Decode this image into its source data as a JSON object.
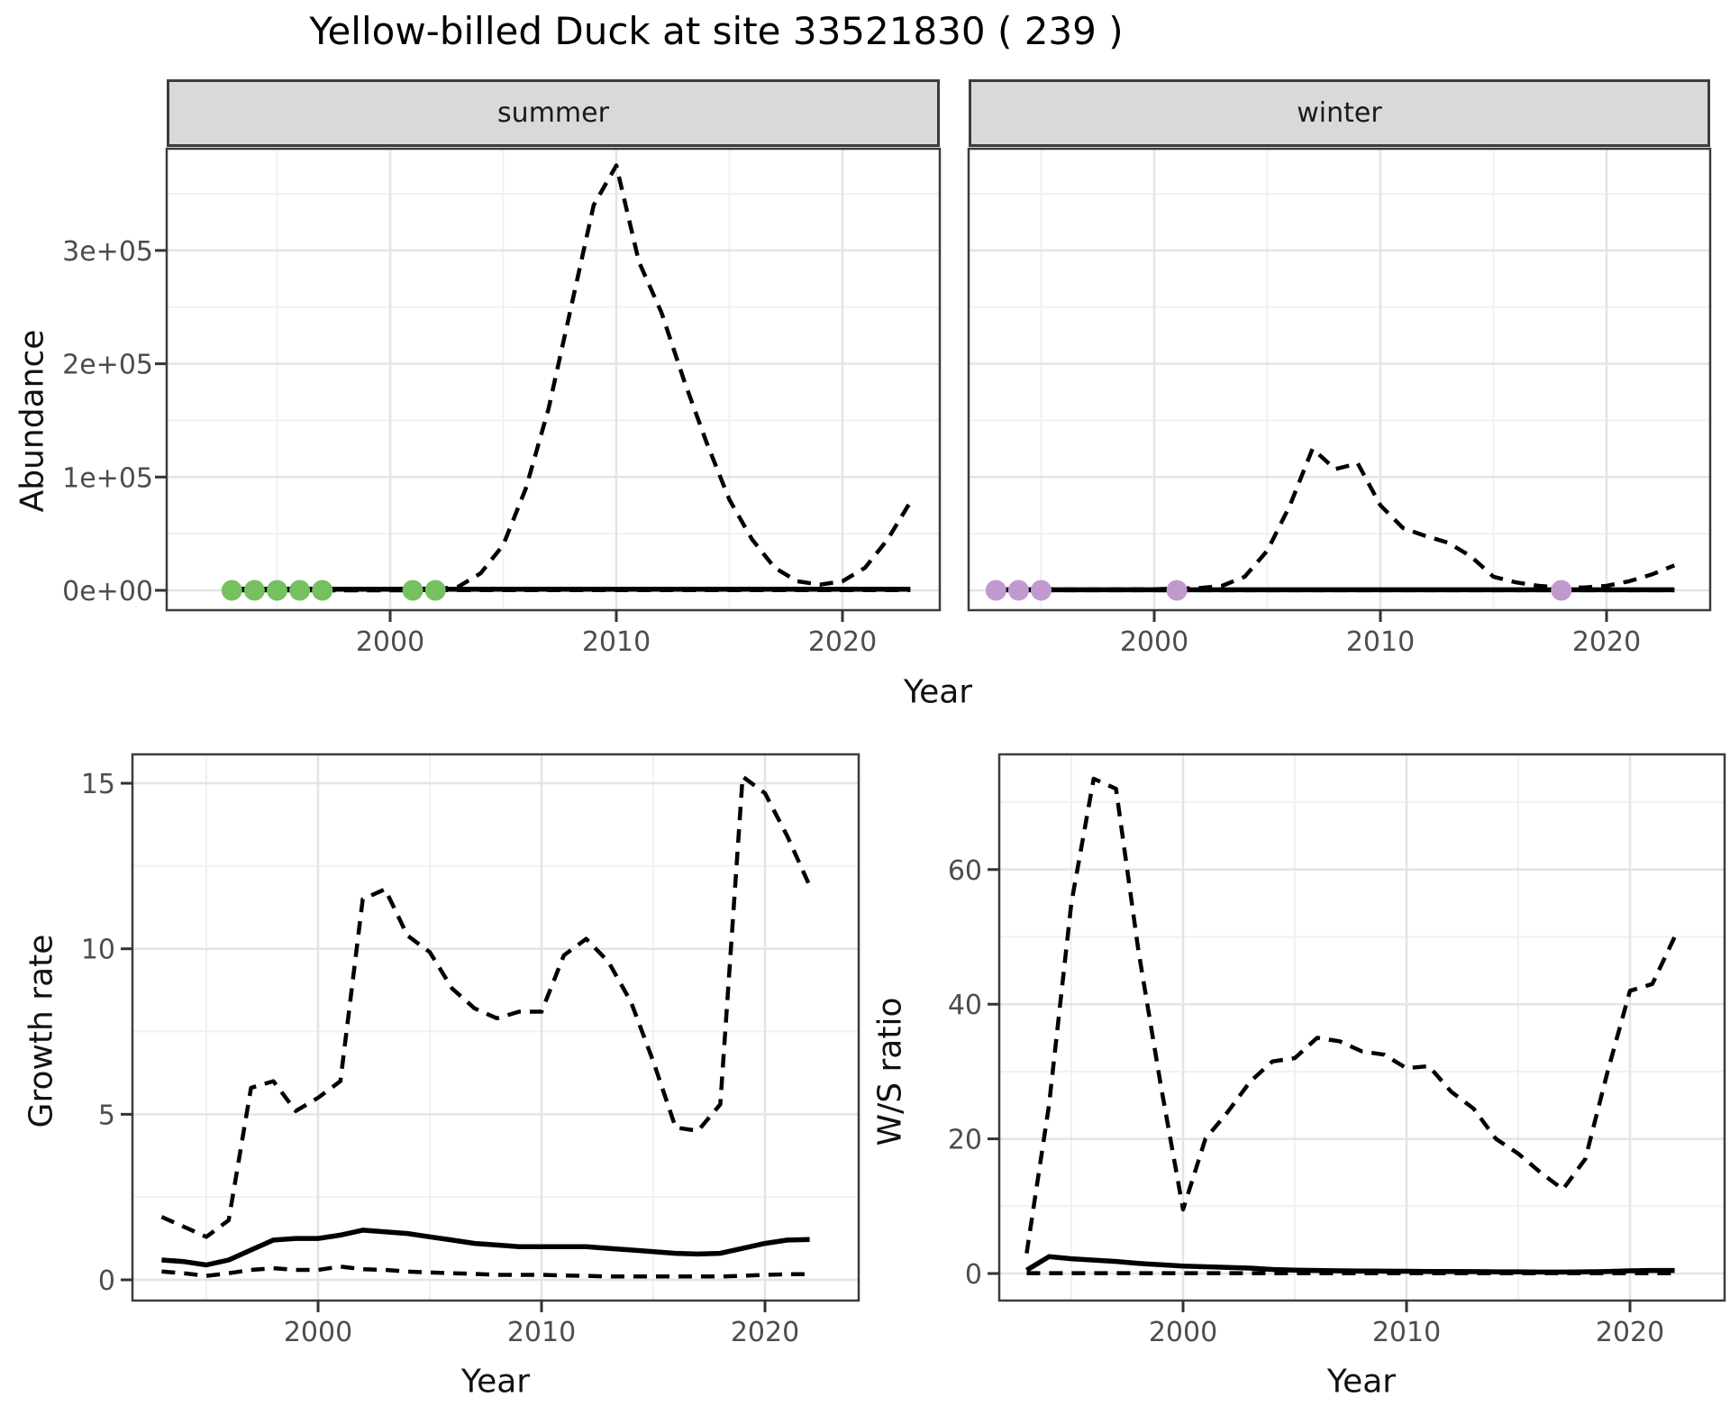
{
  "title": "Yellow-billed Duck at site 33521830 ( 239 )",
  "facets": [
    {
      "label": "summer"
    },
    {
      "label": "winter"
    }
  ],
  "axes": {
    "top": {
      "x_label": "Year",
      "y_label": "Abundance",
      "x_ticks": [
        {
          "label": "2000",
          "v": 2000
        },
        {
          "label": "2010",
          "v": 2010
        },
        {
          "label": "2020",
          "v": 2020
        }
      ],
      "y_ticks": [
        {
          "label": "0e+00",
          "v": 0
        },
        {
          "label": "1e+05",
          "v": 100000
        },
        {
          "label": "2e+05",
          "v": 200000
        },
        {
          "label": "3e+05",
          "v": 300000
        }
      ]
    },
    "growth": {
      "x_label": "Year",
      "y_label": "Growth rate",
      "x_ticks": [
        {
          "label": "2000",
          "v": 2000
        },
        {
          "label": "2010",
          "v": 2010
        },
        {
          "label": "2020",
          "v": 2020
        }
      ],
      "y_ticks": [
        {
          "label": "0",
          "v": 0
        },
        {
          "label": "5",
          "v": 5
        },
        {
          "label": "10",
          "v": 10
        },
        {
          "label": "15",
          "v": 15
        }
      ]
    },
    "ws": {
      "x_label": "Year",
      "y_label": "W/S ratio",
      "x_ticks": [
        {
          "label": "2000",
          "v": 2000
        },
        {
          "label": "2010",
          "v": 2010
        },
        {
          "label": "2020",
          "v": 2020
        }
      ],
      "y_ticks": [
        {
          "label": "0",
          "v": 0
        },
        {
          "label": "20",
          "v": 20
        },
        {
          "label": "40",
          "v": 40
        },
        {
          "label": "60",
          "v": 60
        }
      ]
    }
  },
  "colors": {
    "line": "#000000",
    "summer_points": "#75c05f",
    "winter_points": "#c09ace",
    "grid_major": "#e4e4e4",
    "grid_minor": "#f1f1f1",
    "panel_border": "#3c3c3c",
    "tick_mark": "#333333",
    "tick_text": "#4d4d4d",
    "strip_bg": "#d9d9d9"
  },
  "chart_data": [
    {
      "id": "abundance-summer",
      "type": "line",
      "facet": "summer",
      "xlabel": "Year",
      "ylabel": "Abundance",
      "x_start_year": 1993,
      "xlim": [
        1990,
        2024.5
      ],
      "ylim": [
        0,
        390000
      ],
      "series": [
        {
          "name": "upper_ci",
          "style": "dashed",
          "values": [
            0,
            0,
            0,
            0,
            0,
            0,
            0,
            0,
            0,
            1000,
            3000,
            15000,
            40000,
            90000,
            160000,
            250000,
            340000,
            375000,
            290000,
            245000,
            185000,
            130000,
            80000,
            45000,
            20000,
            8000,
            5000,
            8000,
            20000,
            45000,
            78000
          ]
        },
        {
          "name": "estimate",
          "style": "solid",
          "values": [
            1000,
            1000,
            1000,
            1000,
            1000,
            1000,
            1000,
            1000,
            1000,
            1000,
            1000,
            1000,
            1000,
            1000,
            1000,
            1000,
            1000,
            1000,
            1000,
            1000,
            1000,
            1000,
            1000,
            1000,
            1000,
            1000,
            1000,
            1000,
            1000,
            1000,
            1000
          ]
        },
        {
          "name": "lower_ci",
          "style": "dashed",
          "values": [
            200,
            200,
            200,
            200,
            200,
            200,
            200,
            200,
            200,
            200,
            200,
            200,
            200,
            200,
            200,
            200,
            200,
            200,
            200,
            200,
            200,
            200,
            200,
            200,
            200,
            200,
            200,
            200,
            200,
            200,
            200
          ]
        }
      ],
      "points": {
        "name": "observed-counts",
        "color": "#75c05f",
        "years": [
          1993,
          1994,
          1995,
          1996,
          1997,
          2001,
          2002
        ],
        "value": 0
      }
    },
    {
      "id": "abundance-winter",
      "type": "line",
      "facet": "winter",
      "xlabel": "Year",
      "ylabel": "Abundance",
      "x_start_year": 1993,
      "xlim": [
        1990,
        2024.5
      ],
      "ylim": [
        0,
        390000
      ],
      "series": [
        {
          "name": "upper_ci",
          "style": "dashed",
          "values": [
            500,
            500,
            800,
            800,
            800,
            800,
            1000,
            1000,
            1500,
            2000,
            4000,
            12000,
            35000,
            75000,
            125000,
            107000,
            112000,
            75000,
            55000,
            48000,
            42000,
            30000,
            12000,
            7000,
            4000,
            2500,
            2500,
            4000,
            8000,
            14000,
            22000
          ]
        },
        {
          "name": "estimate",
          "style": "solid",
          "values": [
            500,
            500,
            500,
            500,
            500,
            500,
            500,
            500,
            500,
            500,
            500,
            500,
            500,
            500,
            500,
            500,
            500,
            500,
            500,
            500,
            500,
            500,
            500,
            500,
            500,
            500,
            500,
            500,
            500,
            500,
            500
          ]
        },
        {
          "name": "lower_ci",
          "style": "dashed",
          "values": [
            100,
            100,
            100,
            100,
            100,
            100,
            100,
            100,
            100,
            100,
            100,
            100,
            100,
            100,
            100,
            100,
            100,
            100,
            100,
            100,
            100,
            100,
            100,
            100,
            100,
            100,
            100,
            100,
            100,
            100,
            100
          ]
        }
      ],
      "points": {
        "name": "observed-counts",
        "color": "#c09ace",
        "years": [
          1993,
          1994,
          1995,
          2001,
          2018
        ],
        "value": 0
      }
    },
    {
      "id": "growth-rate",
      "type": "line",
      "xlabel": "Year",
      "ylabel": "Growth rate",
      "x_start_year": 1993,
      "xlim": [
        1991.5,
        2024.5
      ],
      "ylim": [
        0,
        15.8
      ],
      "series": [
        {
          "name": "upper_ci",
          "style": "dashed",
          "values": [
            1.9,
            1.6,
            1.3,
            1.8,
            5.8,
            6.0,
            5.1,
            5.5,
            6.0,
            11.5,
            11.8,
            10.4,
            9.9,
            8.8,
            8.2,
            7.9,
            8.1,
            8.1,
            9.8,
            10.3,
            9.6,
            8.4,
            6.6,
            4.6,
            4.5,
            5.3,
            15.2,
            14.7,
            13.4,
            11.9
          ]
        },
        {
          "name": "estimate",
          "style": "solid",
          "values": [
            0.6,
            0.55,
            0.45,
            0.6,
            0.9,
            1.2,
            1.25,
            1.25,
            1.35,
            1.5,
            1.45,
            1.4,
            1.3,
            1.2,
            1.1,
            1.05,
            1.0,
            1.0,
            1.0,
            1.0,
            0.95,
            0.9,
            0.85,
            0.8,
            0.78,
            0.8,
            0.95,
            1.1,
            1.2,
            1.22
          ]
        },
        {
          "name": "lower_ci",
          "style": "dashed",
          "values": [
            0.25,
            0.2,
            0.12,
            0.2,
            0.3,
            0.35,
            0.3,
            0.3,
            0.4,
            0.32,
            0.3,
            0.25,
            0.22,
            0.2,
            0.18,
            0.15,
            0.15,
            0.15,
            0.13,
            0.12,
            0.1,
            0.1,
            0.1,
            0.1,
            0.1,
            0.1,
            0.12,
            0.15,
            0.17,
            0.17
          ]
        }
      ]
    },
    {
      "id": "ws-ratio",
      "type": "line",
      "xlabel": "Year",
      "ylabel": "W/S ratio",
      "x_start_year": 1993,
      "xlim": [
        1991.5,
        2024.5
      ],
      "ylim": [
        0,
        77
      ],
      "series": [
        {
          "name": "upper_ci",
          "style": "dashed",
          "values": [
            3,
            25,
            55,
            73.5,
            72,
            48,
            28,
            9.5,
            20,
            24,
            28.5,
            31.5,
            32,
            35,
            34.5,
            33,
            32.5,
            30.5,
            30.8,
            27,
            24.5,
            20,
            17.8,
            15,
            12.5,
            17,
            30,
            42,
            43,
            50
          ]
        },
        {
          "name": "estimate",
          "style": "solid",
          "values": [
            0.5,
            2.5,
            2.2,
            2.0,
            1.8,
            1.5,
            1.3,
            1.1,
            1.0,
            0.9,
            0.8,
            0.6,
            0.5,
            0.45,
            0.4,
            0.38,
            0.35,
            0.33,
            0.3,
            0.3,
            0.28,
            0.25,
            0.25,
            0.22,
            0.22,
            0.25,
            0.3,
            0.4,
            0.45,
            0.45
          ]
        },
        {
          "name": "lower_ci",
          "style": "dashed",
          "values": [
            0.05,
            0.05,
            0.05,
            0.05,
            0.05,
            0.05,
            0.05,
            0.05,
            0.05,
            0.05,
            0.05,
            0.05,
            0.05,
            0.05,
            0.05,
            0.05,
            0.05,
            0.05,
            0.05,
            0.05,
            0.05,
            0.05,
            0.05,
            0.05,
            0.05,
            0.05,
            0.05,
            0.05,
            0.05,
            0.05
          ]
        }
      ]
    }
  ]
}
